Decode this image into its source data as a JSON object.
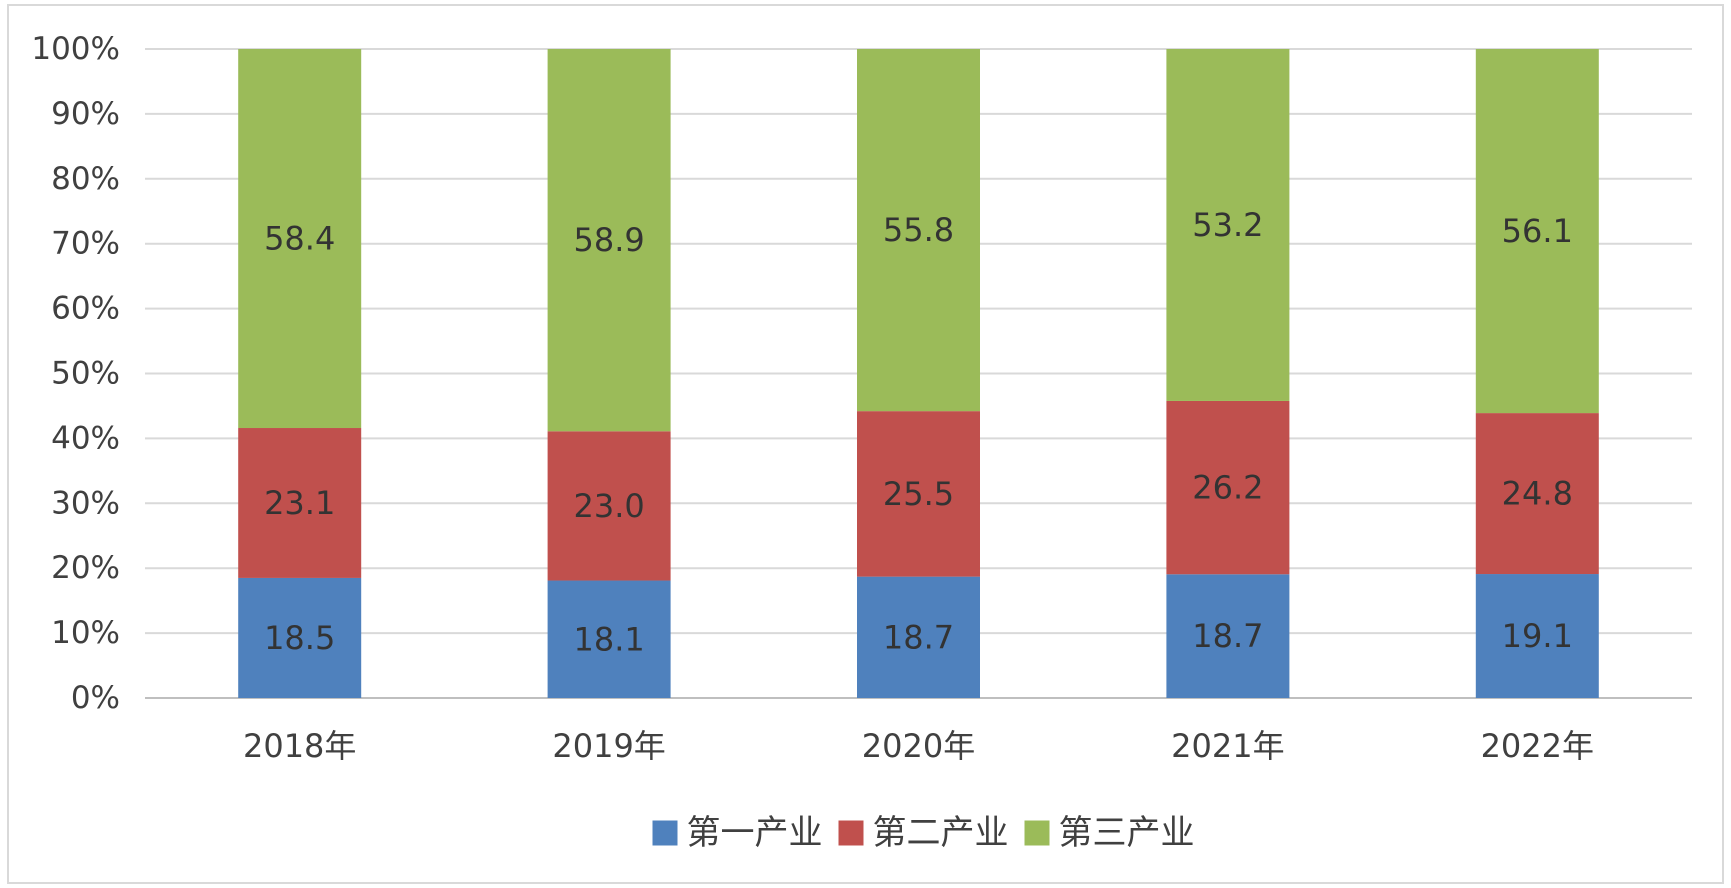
{
  "chart_data": {
    "type": "bar",
    "stacked": "percent",
    "title": "",
    "xlabel": "",
    "ylabel": "",
    "categories": [
      "2018年",
      "2019年",
      "2020年",
      "2021年",
      "2022年"
    ],
    "series": [
      {
        "name": "第一产业",
        "color": "#4f81bd",
        "values": [
          18.5,
          18.1,
          18.7,
          18.7,
          19.1
        ]
      },
      {
        "name": "第二产业",
        "color": "#c0504d",
        "values": [
          23.1,
          23.0,
          25.5,
          26.2,
          24.8
        ]
      },
      {
        "name": "第三产业",
        "color": "#9bbb59",
        "values": [
          58.4,
          58.9,
          55.8,
          53.2,
          56.1
        ]
      }
    ],
    "ylim": [
      0,
      100
    ],
    "yticks": [
      "0%",
      "10%",
      "20%",
      "30%",
      "40%",
      "50%",
      "60%",
      "70%",
      "80%",
      "90%",
      "100%"
    ],
    "grid": true,
    "legend_position": "bottom",
    "data_labels": true
  }
}
